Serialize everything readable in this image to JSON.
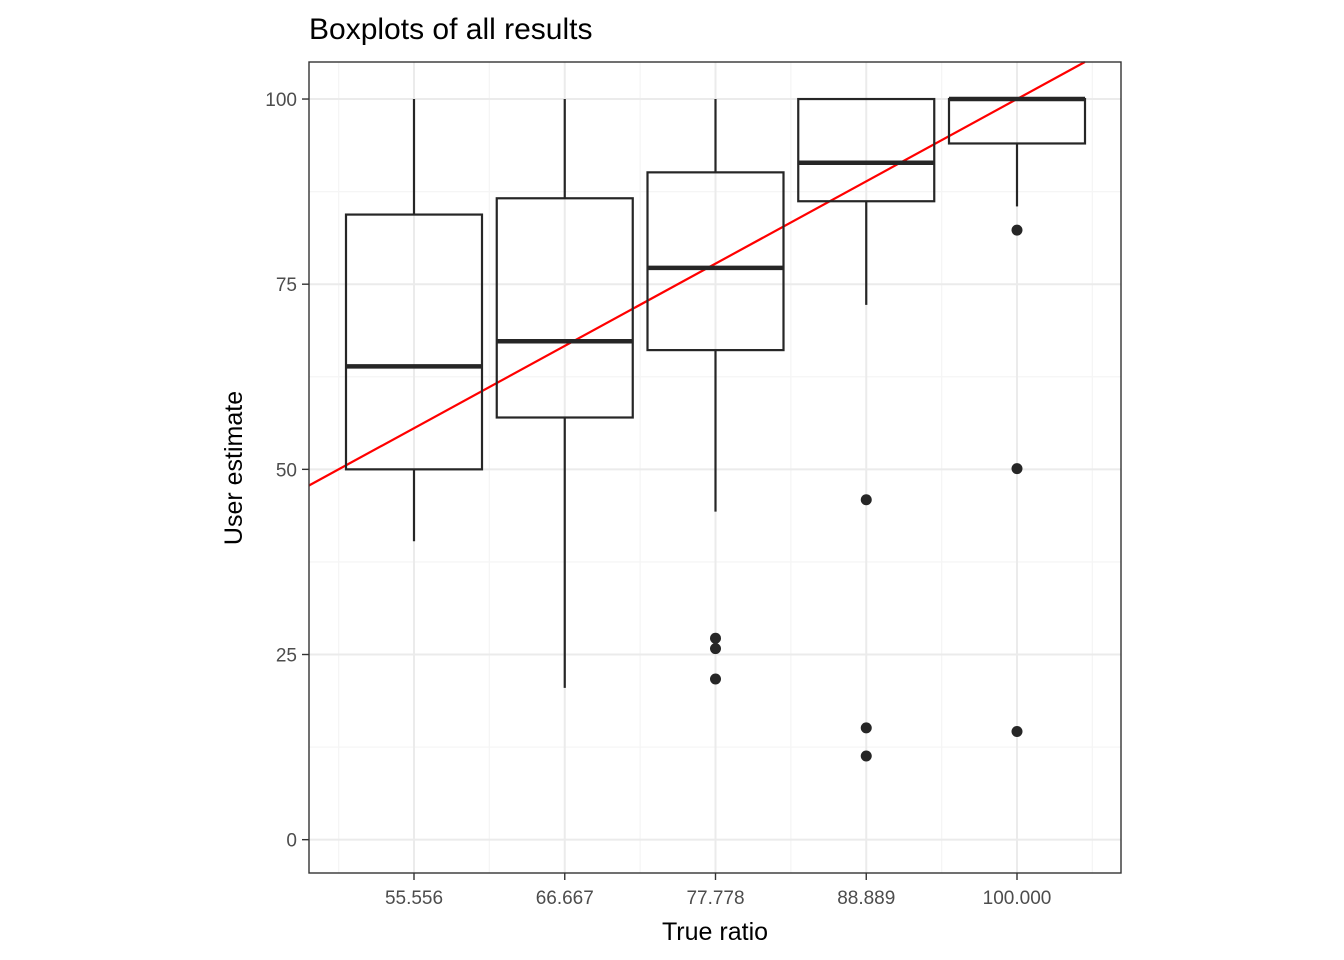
{
  "chart_data": {
    "type": "boxplot",
    "title": "Boxplots of all results",
    "xlabel": "True ratio",
    "ylabel": "User estimate",
    "ylim": [
      -4.5,
      105
    ],
    "y_ticks": [
      0,
      25,
      50,
      75,
      100
    ],
    "grid": true,
    "categories": [
      "55.556",
      "66.667",
      "77.778",
      "88.889",
      "100.000"
    ],
    "boxes": [
      {
        "category": "55.556",
        "whisker_low": 40.3,
        "q1": 50.0,
        "median": 63.9,
        "q3": 84.4,
        "whisker_high": 100,
        "outliers": []
      },
      {
        "category": "66.667",
        "whisker_low": 20.5,
        "q1": 57.0,
        "median": 67.3,
        "q3": 86.6,
        "whisker_high": 100,
        "outliers": []
      },
      {
        "category": "77.778",
        "whisker_low": 44.3,
        "q1": 66.1,
        "median": 77.2,
        "q3": 90.1,
        "whisker_high": 100,
        "outliers": [
          27.2,
          25.8,
          21.7
        ]
      },
      {
        "category": "88.889",
        "whisker_low": 72.2,
        "q1": 86.2,
        "median": 91.4,
        "q3": 100,
        "whisker_high": 100,
        "outliers": [
          45.9,
          15.1,
          11.3
        ]
      },
      {
        "category": "100.000",
        "whisker_low": 85.5,
        "q1": 94.0,
        "median": 100,
        "q3": 100,
        "whisker_high": 100,
        "outliers": [
          82.3,
          50.1,
          14.6
        ]
      }
    ],
    "reference_line": {
      "description": "identity line y = x",
      "color": "#ff0000"
    },
    "colors": {
      "box": "#262626",
      "grid_major": "#ebebeb",
      "grid_minor": "#f5f5f5",
      "panel_border": "#333333",
      "reference": "#ff0000"
    }
  }
}
